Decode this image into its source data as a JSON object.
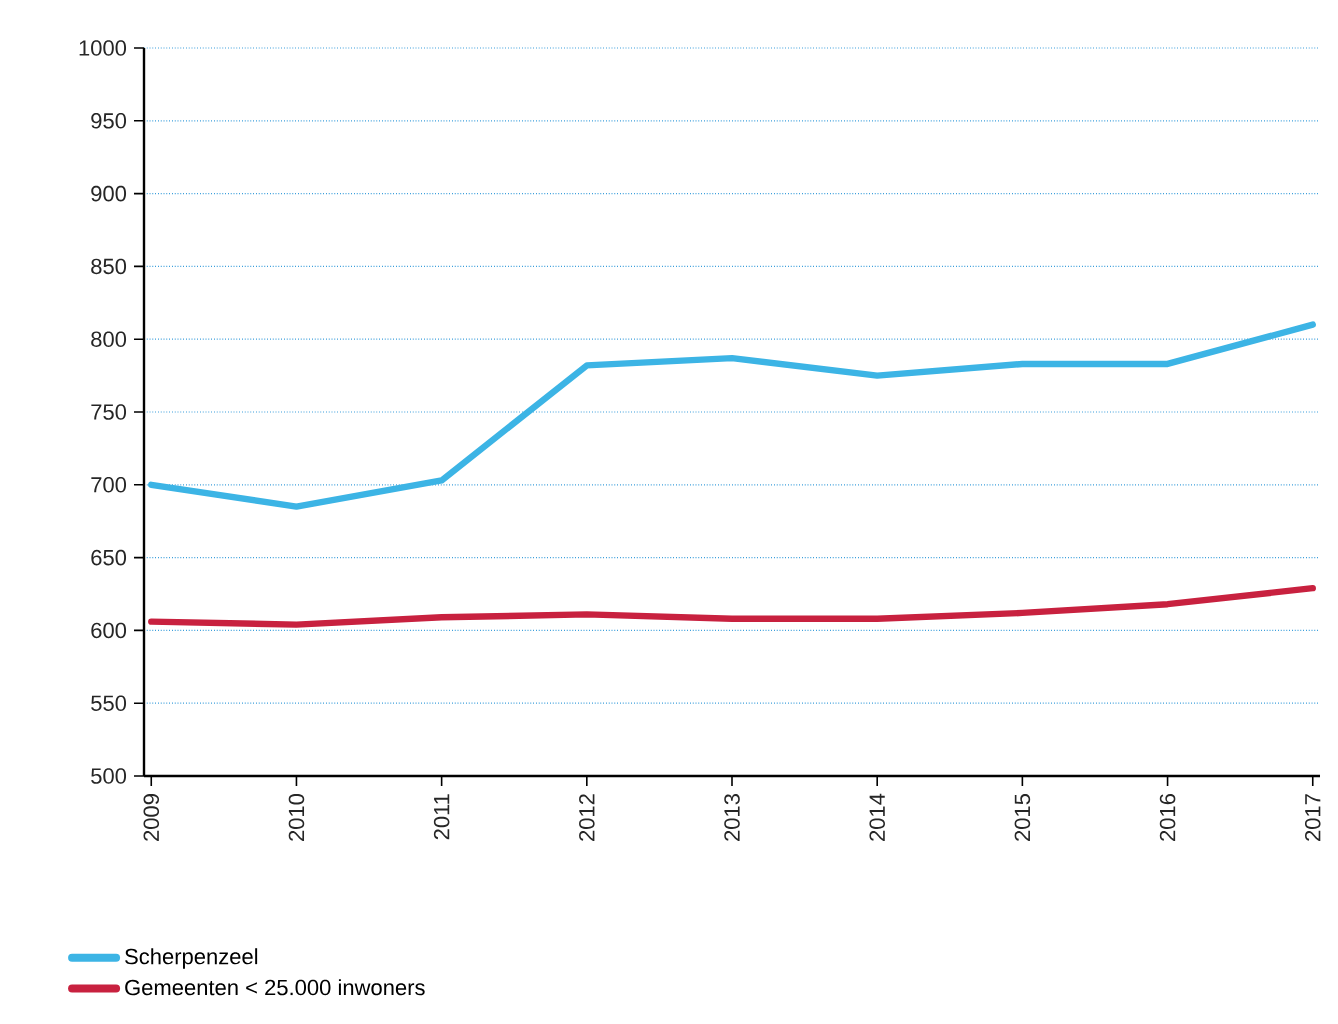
{
  "chart_data": {
    "type": "line",
    "categories": [
      "2009",
      "2010",
      "2011",
      "2012",
      "2013",
      "2014",
      "2015",
      "2016",
      "2017"
    ],
    "series": [
      {
        "name": "Scherpenzeel",
        "color": "#3cb4e5",
        "values": [
          700,
          685,
          703,
          782,
          787,
          775,
          783,
          783,
          810
        ]
      },
      {
        "name": "Gemeenten < 25.000 inwoners",
        "color": "#c8213f",
        "values": [
          606,
          604,
          609,
          611,
          608,
          608,
          612,
          618,
          629
        ]
      }
    ],
    "ylim": [
      500,
      1000
    ],
    "yticks": [
      500,
      550,
      600,
      650,
      700,
      750,
      800,
      850,
      900,
      950,
      1000
    ],
    "grid": "y",
    "legend": "bottom",
    "line_style": "solid",
    "marker": "none"
  }
}
